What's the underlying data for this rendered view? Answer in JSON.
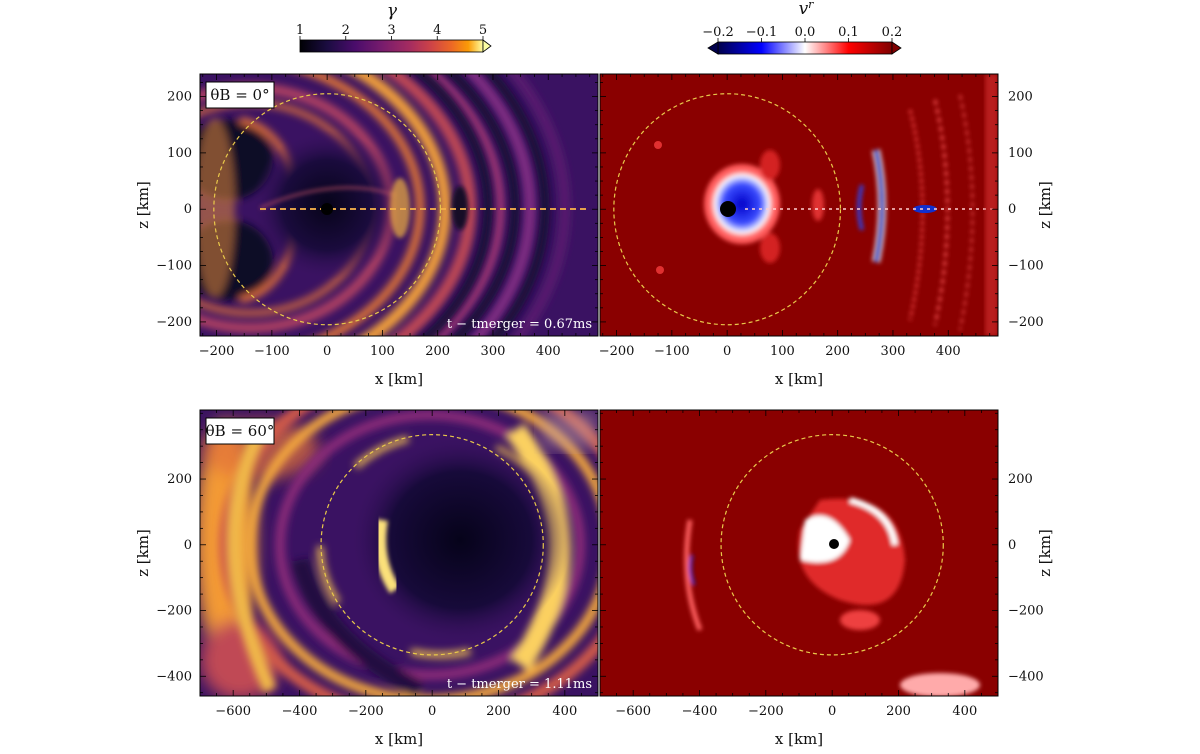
{
  "chart_data": {
    "type": "heatmap",
    "colorbars": [
      {
        "label": "γ",
        "ticks": [
          "1",
          "2",
          "3",
          "4",
          "5"
        ],
        "range": [
          1,
          5
        ],
        "colormap": "inferno",
        "extend": "max"
      },
      {
        "label": "v^r",
        "ticks": [
          "−0.2",
          "−0.1",
          "0.0",
          "0.1",
          "0.2"
        ],
        "range": [
          -0.2,
          0.2
        ],
        "colormap": "seismic",
        "extend": "both"
      }
    ],
    "rows": [
      {
        "theta_label": "θB = 0°",
        "time_label": "t − tmerger = 0.67ms",
        "xlim": [
          -230,
          490
        ],
        "ylim": [
          -225,
          240
        ],
        "xticks": [
          -200,
          -100,
          0,
          100,
          200,
          300,
          400
        ],
        "yticks": [
          -200,
          -100,
          0,
          100,
          200
        ],
        "circle_radius": 205,
        "bh_center": [
          0,
          0
        ],
        "xlabel": "x [km]",
        "ylabel": "z [km]"
      },
      {
        "theta_label": "θB = 60°",
        "time_label": "t − tmerger = 1.11ms",
        "xlim": [
          -700,
          500
        ],
        "ylim": [
          -460,
          410
        ],
        "xticks": [
          -600,
          -400,
          -200,
          0,
          200,
          400
        ],
        "yticks": [
          -400,
          -200,
          0,
          200
        ],
        "circle_radius": 335,
        "bh_center": [
          0,
          0
        ],
        "xlabel": "x [km]",
        "ylabel": "z [km]"
      }
    ],
    "colors": {
      "inferno_dark": "#0d0829",
      "inferno_mid": "#7b2a82",
      "inferno_orange": "#e7702a",
      "inferno_yellow": "#fcf4a3",
      "seismic_red": "#8a0000",
      "seismic_blue": "#0000b0",
      "circle": "#e8c84a"
    }
  }
}
